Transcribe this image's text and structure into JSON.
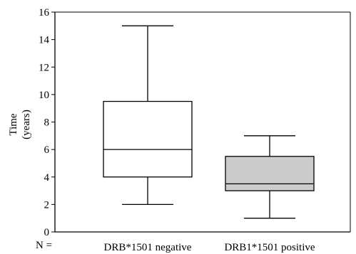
{
  "chart_data": {
    "type": "box",
    "ylabel_line1": "Time",
    "ylabel_line2": "(years)",
    "ylim": [
      0,
      16
    ],
    "yticks": [
      0,
      2,
      4,
      6,
      8,
      10,
      12,
      14,
      16
    ],
    "n_label": "N =",
    "grid": false,
    "boxes": [
      {
        "category": "DRB*1501 negative",
        "min": 2,
        "q1": 4,
        "median": 6,
        "q3": 9.5,
        "max": 15,
        "fill": "#ffffff"
      },
      {
        "category": "DRB1*1501 positive",
        "min": 1,
        "q1": 3,
        "median": 3.5,
        "q3": 5.5,
        "max": 7,
        "fill": "#cccccc"
      }
    ]
  }
}
